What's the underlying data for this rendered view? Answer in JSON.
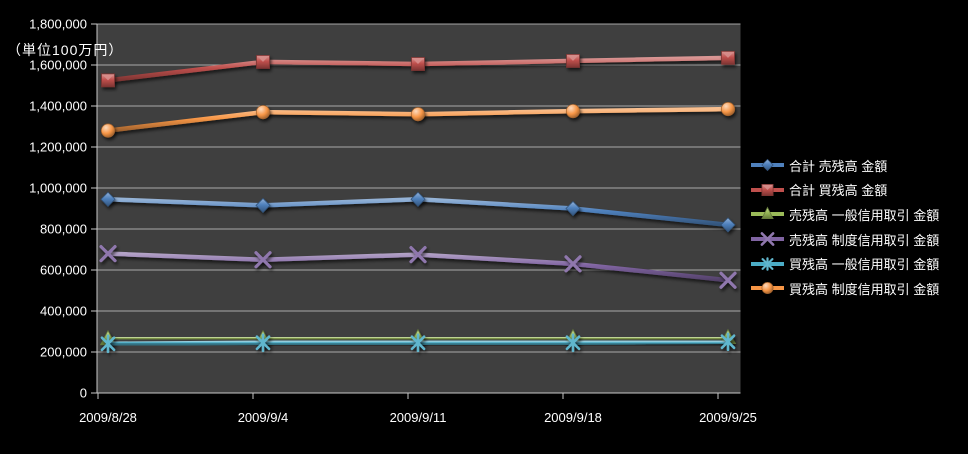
{
  "chart_data": {
    "type": "line",
    "title": "",
    "unit_label": "（単位100万円）",
    "xlabel": "",
    "ylabel": "",
    "categories": [
      "2009/8/28",
      "2009/9/4",
      "2009/9/11",
      "2009/9/18",
      "2009/9/25"
    ],
    "series": [
      {
        "name": "合計 売残高 金額",
        "color": "#4F81BD",
        "marker": "diamond",
        "values": [
          945000,
          915000,
          945000,
          900000,
          820000
        ]
      },
      {
        "name": "合計 買残高 金額",
        "color": "#C0504D",
        "marker": "square",
        "values": [
          1525000,
          1615000,
          1605000,
          1620000,
          1635000
        ]
      },
      {
        "name": "売残高 一般信用取引 金額",
        "color": "#9BBB59",
        "marker": "triangle",
        "values": [
          265000,
          265000,
          270000,
          270000,
          270000
        ]
      },
      {
        "name": "売残高 制度信用取引 金額",
        "color": "#8064A2",
        "marker": "x",
        "values": [
          680000,
          650000,
          675000,
          630000,
          550000
        ]
      },
      {
        "name": "買残高 一般信用取引 金額",
        "color": "#4BACC6",
        "marker": "asterisk",
        "values": [
          240000,
          245000,
          245000,
          245000,
          250000
        ]
      },
      {
        "name": "買残高 制度信用取引 金額",
        "color": "#F79646",
        "marker": "circle",
        "values": [
          1280000,
          1370000,
          1360000,
          1375000,
          1385000
        ]
      }
    ],
    "ylim": [
      0,
      1800000
    ],
    "y_step": 200000,
    "y_tick_labels": [
      "0",
      "200,000",
      "400,000",
      "600,000",
      "800,000",
      "1,000,000",
      "1,200,000",
      "1,400,000",
      "1,600,000",
      "1,800,000"
    ],
    "grid": true,
    "legend_position": "right",
    "colors": {
      "background": "#000000",
      "plot_background": "#3F3F3F",
      "gridline": "#BDBDBD",
      "axis_line": "#C8C8C8",
      "text": "#FFFFFF"
    }
  }
}
